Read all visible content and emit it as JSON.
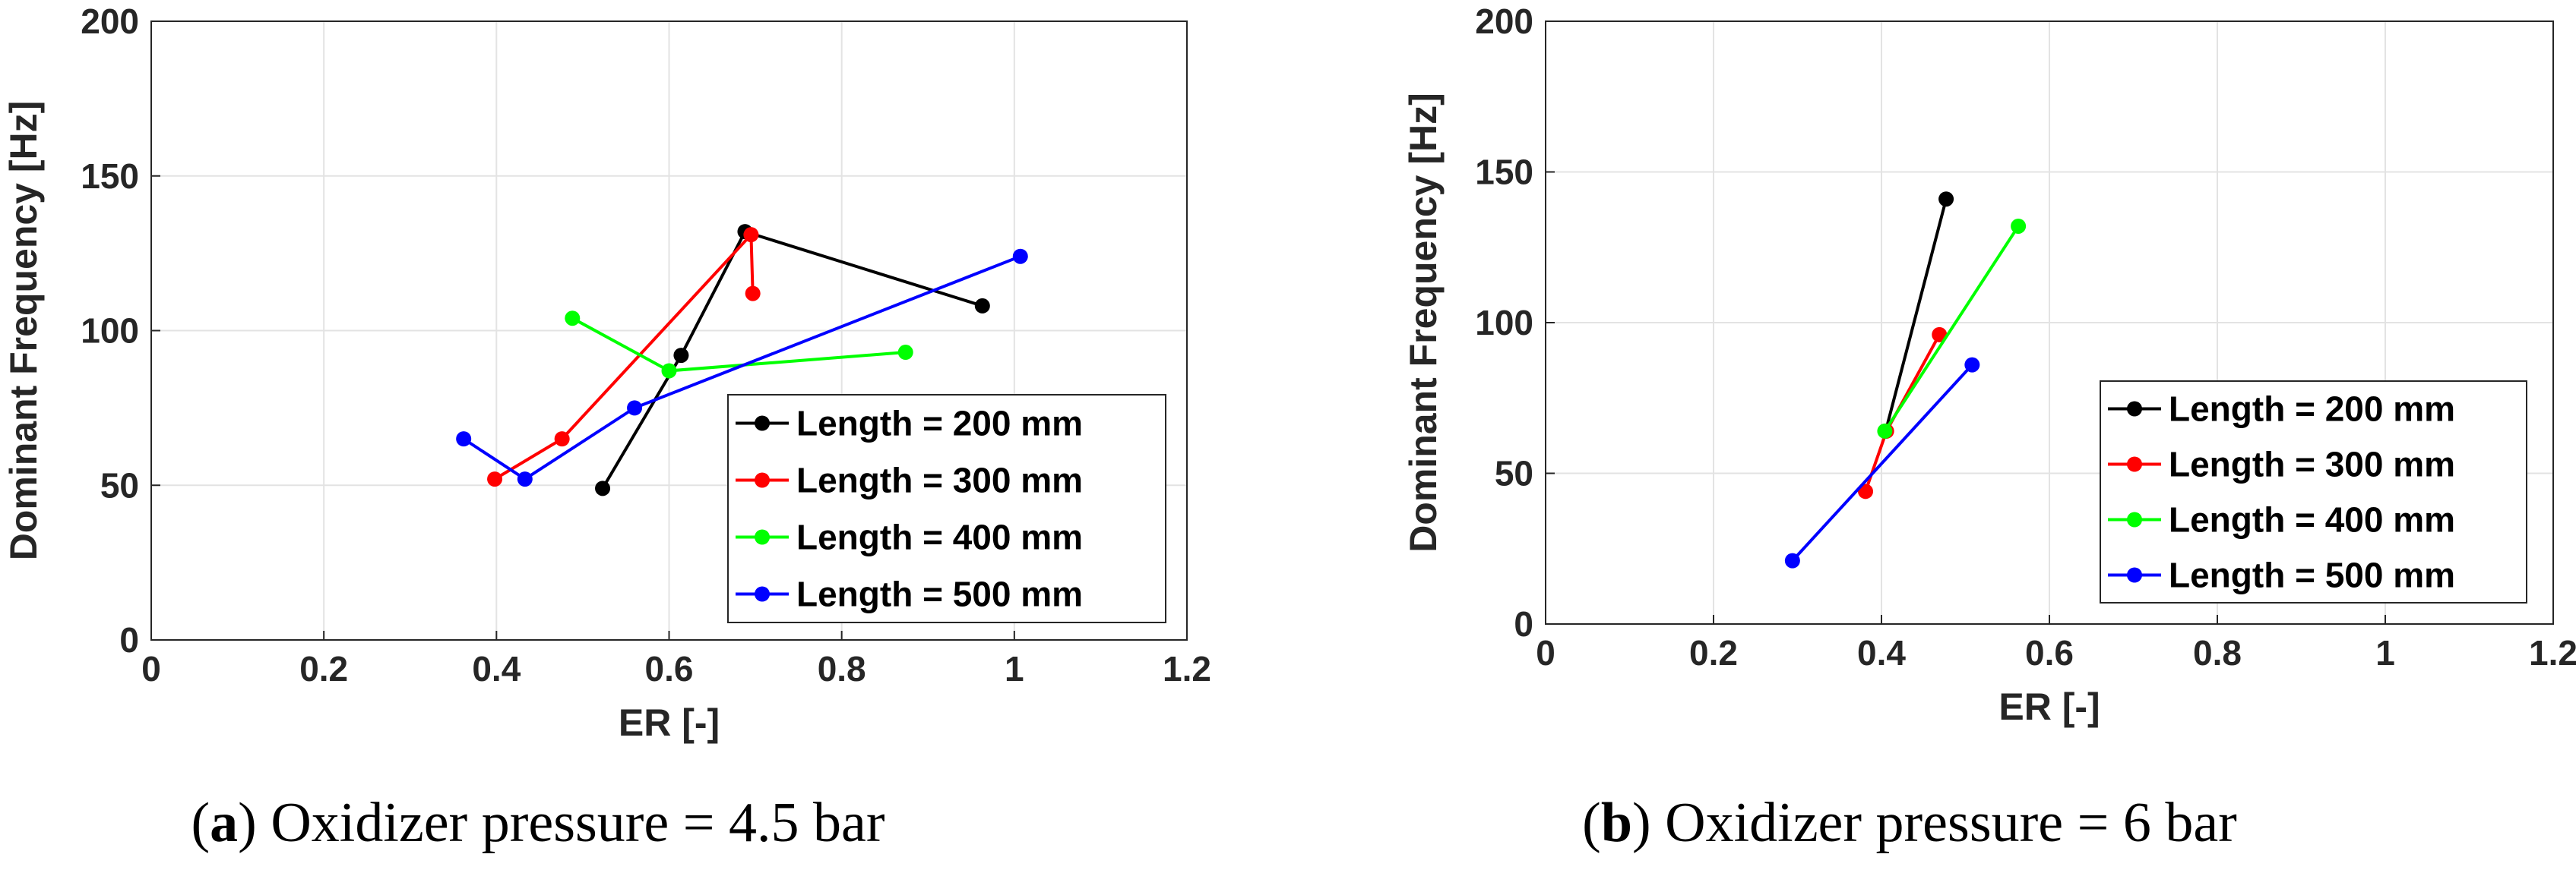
{
  "chart_data": [
    {
      "type": "line",
      "panel": "a",
      "caption": {
        "letter": "a",
        "text": "Oxidizer pressure = 4.5 bar"
      },
      "xlabel": "ER [-]",
      "ylabel": "Dominant Frequency [Hz]",
      "xlim": [
        0,
        1.2
      ],
      "ylim": [
        0,
        200
      ],
      "xticks": [
        0,
        0.2,
        0.4,
        0.6,
        0.8,
        1,
        1.2
      ],
      "xtick_labels": [
        "0",
        "0.2",
        "0.4",
        "0.6",
        "0.8",
        "1",
        "1.2"
      ],
      "yticks": [
        0,
        50,
        100,
        150,
        200
      ],
      "ytick_labels": [
        "0",
        "50",
        "100",
        "150",
        "200"
      ],
      "grid": true,
      "legend_position": "bottom-right",
      "series": [
        {
          "name": "Length = 200 mm",
          "color": "#000000",
          "x": [
            0.523,
            0.614,
            0.688,
            0.963
          ],
          "y": [
            49,
            92,
            132,
            108
          ]
        },
        {
          "name": "Length = 300 mm",
          "color": "#ff0000",
          "x": [
            0.398,
            0.476,
            0.695,
            0.697
          ],
          "y": [
            52,
            65,
            131,
            112
          ]
        },
        {
          "name": "Length = 400 mm",
          "color": "#00ff00",
          "x": [
            0.488,
            0.6,
            0.874
          ],
          "y": [
            104,
            87,
            93
          ]
        },
        {
          "name": "Length = 500 mm",
          "color": "#0000ff",
          "x": [
            0.362,
            0.433,
            0.56,
            1.007
          ],
          "y": [
            65,
            52,
            75,
            124
          ]
        }
      ]
    },
    {
      "type": "line",
      "panel": "b",
      "caption": {
        "letter": "b",
        "text": "Oxidizer pressure = 6 bar"
      },
      "xlabel": "ER [-]",
      "ylabel": "Dominant Frequency [Hz]",
      "xlim": [
        0,
        1.2
      ],
      "ylim": [
        0,
        200
      ],
      "xticks": [
        0,
        0.2,
        0.4,
        0.6,
        0.8,
        1,
        1.2
      ],
      "xtick_labels": [
        "0",
        "0.2",
        "0.4",
        "0.6",
        "0.8",
        "1",
        "1.2"
      ],
      "yticks": [
        0,
        50,
        100,
        150,
        200
      ],
      "ytick_labels": [
        "0",
        "50",
        "100",
        "150",
        "200"
      ],
      "grid": true,
      "legend_position": "bottom-right",
      "series": [
        {
          "name": "Length = 200 mm",
          "color": "#000000",
          "x": [
            0.405,
            0.477
          ],
          "y": [
            64,
            141
          ]
        },
        {
          "name": "Length = 300 mm",
          "color": "#ff0000",
          "x": [
            0.381,
            0.406,
            0.469
          ],
          "y": [
            44,
            64,
            96
          ]
        },
        {
          "name": "Length = 400 mm",
          "color": "#00ff00",
          "x": [
            0.404,
            0.563
          ],
          "y": [
            64,
            132
          ]
        },
        {
          "name": "Length = 500 mm",
          "color": "#0000ff",
          "x": [
            0.294,
            0.508
          ],
          "y": [
            21,
            86
          ]
        }
      ]
    }
  ]
}
